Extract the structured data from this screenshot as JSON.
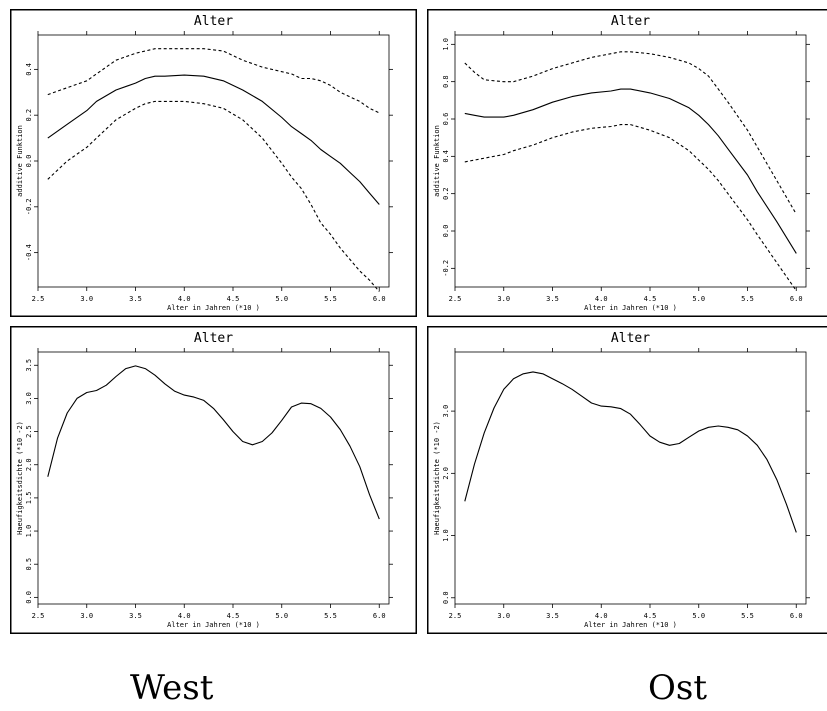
{
  "labels": {
    "west": "West",
    "ost": "Ost"
  },
  "chart_data": [
    {
      "type": "line",
      "title": "Alter",
      "xlabel": "Alter in Jahren     (*10 )",
      "ylabel": "additive Funktion",
      "xlim": [
        2.5,
        6.1
      ],
      "ylim": [
        -0.55,
        0.55
      ],
      "xticks": [
        "2.5",
        "3.0",
        "3.5",
        "4.0",
        "4.5",
        "5.0",
        "5.5",
        "6.0"
      ],
      "yticks": [
        "-0.4",
        "-0.2",
        "0.0",
        "0.2",
        "0.4"
      ],
      "x": [
        2.6,
        2.8,
        3.0,
        3.1,
        3.3,
        3.5,
        3.6,
        3.7,
        3.8,
        4.0,
        4.2,
        4.4,
        4.6,
        4.8,
        5.0,
        5.1,
        5.2,
        5.3,
        5.4,
        5.5,
        5.6,
        5.7,
        5.8,
        5.9,
        6.0
      ],
      "series": [
        {
          "style": "solid",
          "values": [
            0.1,
            0.16,
            0.22,
            0.26,
            0.31,
            0.34,
            0.36,
            0.37,
            0.37,
            0.375,
            0.37,
            0.35,
            0.31,
            0.26,
            0.19,
            0.15,
            0.12,
            0.09,
            0.05,
            0.02,
            -0.01,
            -0.05,
            -0.09,
            -0.14,
            -0.19
          ]
        },
        {
          "style": "dashed",
          "values": [
            0.29,
            0.32,
            0.35,
            0.38,
            0.44,
            0.47,
            0.48,
            0.49,
            0.49,
            0.49,
            0.49,
            0.48,
            0.44,
            0.41,
            0.39,
            0.38,
            0.36,
            0.36,
            0.35,
            0.33,
            0.3,
            0.28,
            0.26,
            0.23,
            0.21
          ]
        },
        {
          "style": "dashed",
          "values": [
            -0.08,
            0.0,
            0.06,
            0.1,
            0.18,
            0.23,
            0.25,
            0.26,
            0.26,
            0.26,
            0.25,
            0.23,
            0.18,
            0.1,
            -0.01,
            -0.07,
            -0.12,
            -0.19,
            -0.27,
            -0.32,
            -0.38,
            -0.43,
            -0.48,
            -0.52,
            -0.57
          ]
        }
      ]
    },
    {
      "type": "line",
      "title": "Alter",
      "xlabel": "Alter in Jahren     (*10 )",
      "ylabel": "additive Funktion",
      "xlim": [
        2.5,
        6.1
      ],
      "ylim": [
        -0.3,
        1.05
      ],
      "xticks": [
        "2.5",
        "3.0",
        "3.5",
        "4.0",
        "4.5",
        "5.0",
        "5.5",
        "6.0"
      ],
      "yticks": [
        "-0.2",
        "0.0",
        "0.2",
        "0.4",
        "0.6",
        "0.8",
        "1.0"
      ],
      "x": [
        2.6,
        2.7,
        2.8,
        3.0,
        3.1,
        3.3,
        3.5,
        3.7,
        3.9,
        4.1,
        4.2,
        4.3,
        4.5,
        4.7,
        4.9,
        5.0,
        5.1,
        5.2,
        5.3,
        5.5,
        5.6,
        5.8,
        6.0
      ],
      "series": [
        {
          "style": "solid",
          "values": [
            0.63,
            0.62,
            0.61,
            0.61,
            0.62,
            0.65,
            0.69,
            0.72,
            0.74,
            0.75,
            0.76,
            0.76,
            0.74,
            0.71,
            0.66,
            0.62,
            0.57,
            0.51,
            0.44,
            0.3,
            0.21,
            0.05,
            -0.12
          ]
        },
        {
          "style": "dashed",
          "values": [
            0.9,
            0.85,
            0.81,
            0.8,
            0.8,
            0.83,
            0.87,
            0.9,
            0.93,
            0.95,
            0.96,
            0.96,
            0.95,
            0.93,
            0.9,
            0.87,
            0.83,
            0.76,
            0.69,
            0.54,
            0.45,
            0.27,
            0.09
          ]
        },
        {
          "style": "dashed",
          "values": [
            0.37,
            0.38,
            0.39,
            0.41,
            0.43,
            0.46,
            0.5,
            0.53,
            0.55,
            0.56,
            0.57,
            0.57,
            0.54,
            0.5,
            0.43,
            0.38,
            0.33,
            0.27,
            0.2,
            0.06,
            -0.02,
            -0.17,
            -0.32
          ]
        }
      ]
    },
    {
      "type": "line",
      "title": "Alter",
      "xlabel": "Alter in Jahren     (*10 )",
      "ylabel": "Haeufigkeitsdichte        (*10 -2)",
      "xlim": [
        2.5,
        6.1
      ],
      "ylim": [
        -0.1,
        3.7
      ],
      "xticks": [
        "2.5",
        "3.0",
        "3.5",
        "4.0",
        "4.5",
        "5.0",
        "5.5",
        "6.0"
      ],
      "yticks": [
        "0.0",
        "0.5",
        "1.0",
        "1.5",
        "2.0",
        "2.5",
        "3.0",
        "3.5"
      ],
      "x": [
        2.6,
        2.7,
        2.8,
        2.9,
        3.0,
        3.1,
        3.2,
        3.3,
        3.4,
        3.5,
        3.6,
        3.7,
        3.8,
        3.9,
        4.0,
        4.1,
        4.2,
        4.3,
        4.4,
        4.5,
        4.6,
        4.7,
        4.8,
        4.9,
        5.0,
        5.1,
        5.2,
        5.3,
        5.4,
        5.5,
        5.6,
        5.7,
        5.8,
        5.9,
        6.0
      ],
      "series": [
        {
          "style": "solid",
          "values": [
            1.82,
            2.4,
            2.78,
            3.0,
            3.09,
            3.12,
            3.2,
            3.33,
            3.45,
            3.49,
            3.45,
            3.35,
            3.22,
            3.11,
            3.05,
            3.02,
            2.97,
            2.85,
            2.68,
            2.5,
            2.35,
            2.3,
            2.35,
            2.48,
            2.67,
            2.87,
            2.93,
            2.92,
            2.85,
            2.72,
            2.53,
            2.28,
            1.97,
            1.55,
            1.18
          ]
        }
      ]
    },
    {
      "type": "line",
      "title": "Alter",
      "xlabel": "Alter in Jahren     (*10 )",
      "ylabel": "Haeufigkeitsdichte        (*10 -2)",
      "xlim": [
        2.5,
        6.1
      ],
      "ylim": [
        -0.1,
        3.95
      ],
      "xticks": [
        "2.5",
        "3.0",
        "3.5",
        "4.0",
        "4.5",
        "5.0",
        "5.5",
        "6.0"
      ],
      "yticks": [
        "0.0",
        "1.0",
        "2.0",
        "3.0"
      ],
      "x": [
        2.6,
        2.7,
        2.8,
        2.9,
        3.0,
        3.1,
        3.2,
        3.3,
        3.4,
        3.5,
        3.6,
        3.7,
        3.8,
        3.9,
        4.0,
        4.1,
        4.2,
        4.3,
        4.4,
        4.5,
        4.6,
        4.7,
        4.8,
        4.9,
        5.0,
        5.1,
        5.2,
        5.3,
        5.4,
        5.5,
        5.6,
        5.7,
        5.8,
        5.9,
        6.0
      ],
      "series": [
        {
          "style": "solid",
          "values": [
            1.55,
            2.15,
            2.65,
            3.05,
            3.35,
            3.52,
            3.6,
            3.63,
            3.6,
            3.52,
            3.44,
            3.35,
            3.24,
            3.13,
            3.08,
            3.07,
            3.04,
            2.95,
            2.78,
            2.6,
            2.5,
            2.45,
            2.48,
            2.58,
            2.68,
            2.74,
            2.76,
            2.74,
            2.7,
            2.6,
            2.45,
            2.22,
            1.9,
            1.5,
            1.05
          ]
        }
      ]
    }
  ]
}
